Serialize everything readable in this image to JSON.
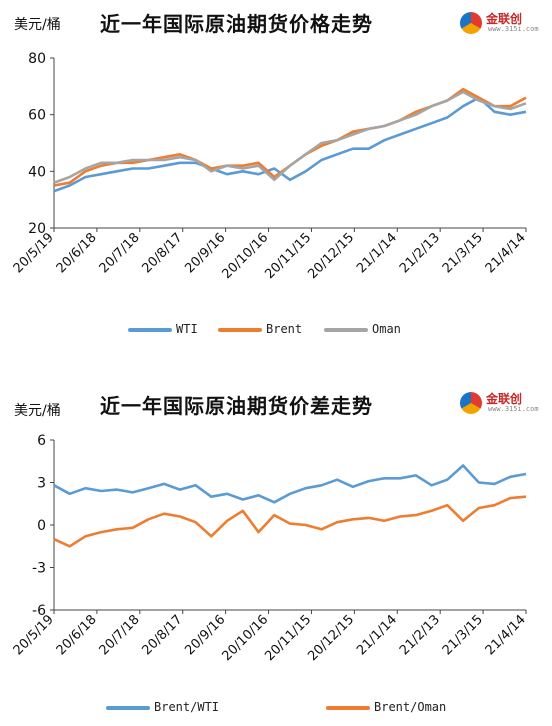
{
  "chart_data": [
    {
      "type": "line",
      "title": "近一年国际原油期货价格走势",
      "ylabel": "美元/桶",
      "ylim": [
        20,
        80
      ],
      "yticks": [
        20,
        40,
        60,
        80
      ],
      "xlabels": [
        "20/5/19",
        "20/6/18",
        "20/7/18",
        "20/8/17",
        "20/9/16",
        "20/10/16",
        "20/11/15",
        "20/12/15",
        "21/1/14",
        "21/2/13",
        "21/3/15",
        "21/4/14"
      ],
      "legend_position": "bottom",
      "grid": false,
      "series": [
        {
          "name": "WTI",
          "color": "#5b9bd5",
          "values": [
            33,
            35,
            38,
            39,
            40,
            41,
            41,
            42,
            43,
            43,
            41,
            39,
            40,
            39,
            41,
            37,
            40,
            44,
            46,
            48,
            48,
            51,
            53,
            55,
            57,
            59,
            63,
            66,
            61,
            60,
            61
          ]
        },
        {
          "name": "Brent",
          "color": "#ed7d31",
          "values": [
            35,
            36,
            40,
            42,
            43,
            43,
            44,
            45,
            46,
            44,
            41,
            42,
            42,
            43,
            38,
            42,
            46,
            49,
            51,
            54,
            55,
            56,
            58,
            61,
            63,
            65,
            69,
            66,
            63,
            63,
            66
          ]
        },
        {
          "name": "Oman",
          "color": "#a5a5a5",
          "values": [
            36,
            38,
            41,
            43,
            43,
            44,
            44,
            44,
            45,
            44,
            40,
            42,
            41,
            42,
            37,
            42,
            46,
            50,
            51,
            53,
            55,
            56,
            58,
            60,
            63,
            65,
            68,
            65,
            63,
            62,
            64
          ]
        }
      ]
    },
    {
      "type": "line",
      "title": "近一年国际原油期货价差走势",
      "ylabel": "美元/桶",
      "ylim": [
        -6,
        6
      ],
      "yticks": [
        6,
        3,
        0,
        -3,
        -6
      ],
      "xlabels": [
        "20/5/19",
        "20/6/18",
        "20/7/18",
        "20/8/17",
        "20/9/16",
        "20/10/16",
        "20/11/15",
        "20/12/15",
        "21/1/14",
        "21/2/13",
        "21/3/15",
        "21/4/14"
      ],
      "legend_position": "bottom",
      "grid": false,
      "series": [
        {
          "name": "Brent/WTI",
          "color": "#5b9bd5",
          "values": [
            2.8,
            2.2,
            2.6,
            2.4,
            2.5,
            2.3,
            2.6,
            2.9,
            2.5,
            2.8,
            2.0,
            2.2,
            1.8,
            2.1,
            1.6,
            2.2,
            2.6,
            2.8,
            3.2,
            2.7,
            3.1,
            3.3,
            3.3,
            3.5,
            2.8,
            3.2,
            4.2,
            3.0,
            2.9,
            3.4,
            3.6
          ]
        },
        {
          "name": "Brent/Oman",
          "color": "#ed7d31",
          "values": [
            -1.0,
            -1.5,
            -0.8,
            -0.5,
            -0.3,
            -0.2,
            0.4,
            0.8,
            0.6,
            0.2,
            -0.8,
            0.3,
            1.0,
            -0.5,
            0.7,
            0.1,
            0.0,
            -0.3,
            0.2,
            0.4,
            0.5,
            0.3,
            0.6,
            0.7,
            1.0,
            1.4,
            0.3,
            1.2,
            1.4,
            1.9,
            2.0
          ]
        }
      ]
    }
  ]
}
